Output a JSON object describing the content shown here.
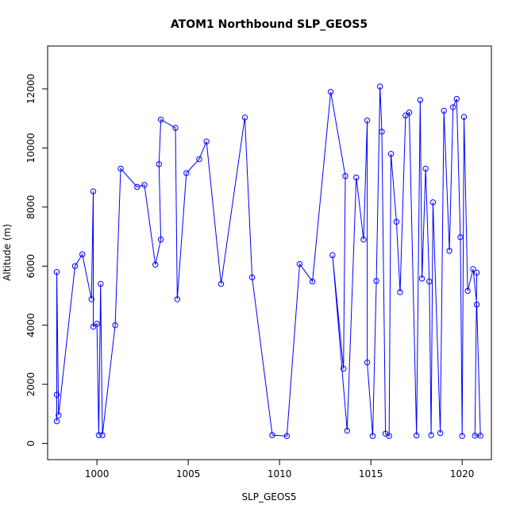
{
  "chart_data": {
    "type": "line",
    "title": "ATOM1 Northbound SLP_GEOS5",
    "xlabel": "SLP_GEOS5",
    "ylabel": "Altitude (m)",
    "xlim": [
      997.3,
      1021.6
    ],
    "ylim": [
      -550,
      13450
    ],
    "xticks": [
      1000,
      1005,
      1010,
      1015,
      1020
    ],
    "yticks": [
      0,
      2000,
      4000,
      6000,
      8000,
      10000,
      12000
    ],
    "grid": false,
    "line_color": "#0000ff",
    "marker": "open-circle",
    "series": [
      {
        "x": [
          997.8,
          997.8,
          997.8,
          997.9,
          998.8,
          999.2,
          999.7,
          999.8,
          999.8,
          1000.0,
          1000.1,
          1000.2,
          1000.3,
          1001.0,
          1001.3,
          1002.2,
          1002.6,
          1003.2,
          1003.5,
          1003.4,
          1003.5,
          1004.3,
          1004.4,
          1004.9,
          1005.6,
          1006.0,
          1006.8,
          1008.1,
          1008.5,
          1009.6,
          1010.4,
          1011.1,
          1011.8,
          1012.8,
          1013.6,
          1013.5,
          1012.9,
          1013.7,
          1014.2,
          1014.6,
          1014.8,
          1014.8,
          1015.1,
          1015.3,
          1015.5,
          1015.6,
          1015.8,
          1016.0,
          1016.1,
          1016.4,
          1016.6,
          1016.9,
          1017.1,
          1017.5,
          1017.7,
          1017.8,
          1018.0,
          1018.2,
          1018.3,
          1018.4,
          1018.8,
          1019.0,
          1019.3,
          1019.5,
          1019.7,
          1019.9,
          1020.0,
          1020.1,
          1020.3,
          1020.6,
          1020.8,
          1021.0,
          1020.7,
          1020.8
        ],
        "y": [
          750,
          1650,
          5800,
          950,
          6000,
          6400,
          4880,
          8530,
          3950,
          4050,
          280,
          5400,
          280,
          4000,
          9300,
          8680,
          8750,
          6050,
          6900,
          9450,
          10960,
          10680,
          4880,
          9150,
          9620,
          10220,
          5400,
          11030,
          5620,
          280,
          250,
          6070,
          5480,
          11900,
          9050,
          2530,
          6370,
          430,
          9000,
          6900,
          10930,
          2740,
          250,
          5500,
          12080,
          10550,
          330,
          250,
          9800,
          7500,
          5120,
          11100,
          11200,
          270,
          11620,
          5580,
          9300,
          5480,
          280,
          8160,
          350,
          11260,
          6520,
          11380,
          11660,
          6980,
          250,
          11050,
          5160,
          5900,
          4700,
          260,
          260,
          5780
        ]
      }
    ]
  }
}
